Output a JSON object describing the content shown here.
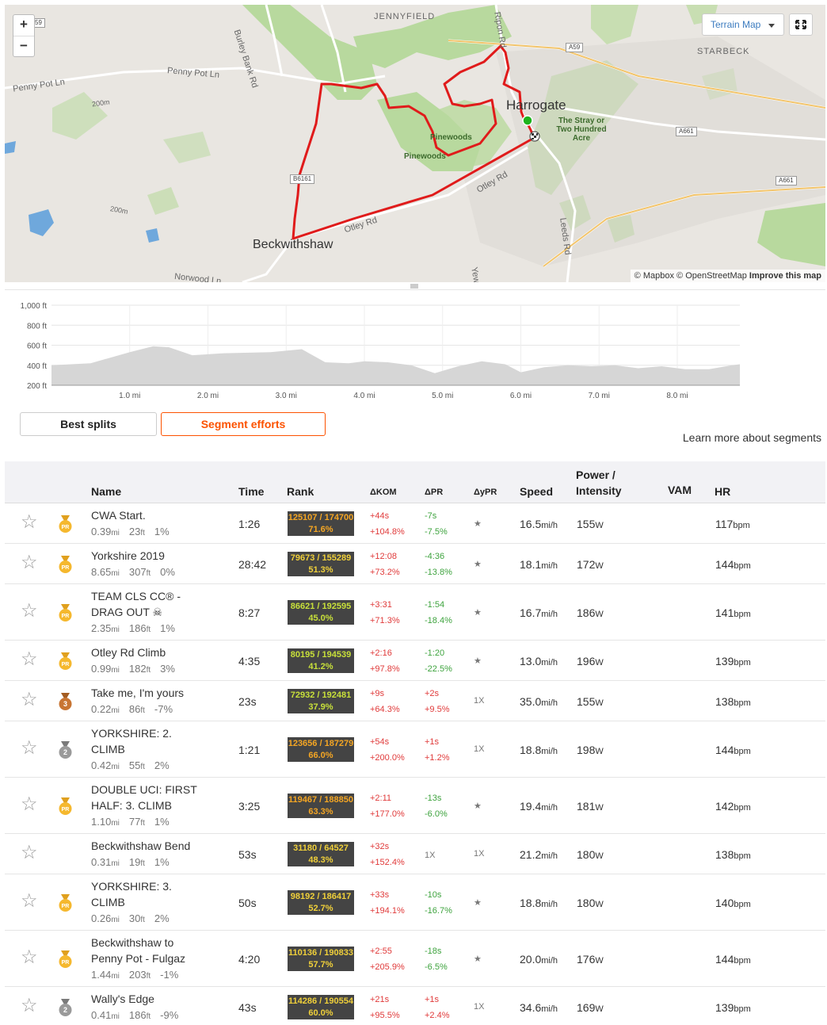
{
  "map": {
    "zoom_in": "+",
    "zoom_out": "−",
    "terrain_button": "Terrain Map",
    "attribution_mapbox": "© Mapbox",
    "attribution_osm": "© OpenStreetMap",
    "attribution_improve": "Improve this map",
    "labels": {
      "jennyfield": "JENNYFIELD",
      "starbeck": "STARBECK",
      "burley_bank_rd": "Burley Bank Rd",
      "ripon_rd": "Ripon Rd",
      "penny_pot_ln_1": "Penny Pot Ln",
      "penny_pot_ln_2": "Penny Pot Ln",
      "contour_200m_1": "200m",
      "contour_200m_2": "200m",
      "otley_rd_1": "Otley Rd",
      "otley_rd_2": "Otley Rd",
      "leeds_rd": "Leeds Rd",
      "norwood_ln": "Norwood Ln",
      "yew": "Yew",
      "harrogate": "Harrogate",
      "beckwithshaw": "Beckwithshaw",
      "pinewoods_1": "Pinewoods",
      "pinewoods_2": "Pinewoods",
      "stray": "The Stray or Two Hundred Acre",
      "a59_1": "59",
      "a59_2": "A59",
      "a661_1": "A661",
      "a661_2": "A661",
      "b6161": "B6161"
    }
  },
  "elevation": {
    "y_ticks": [
      "1,000 ft",
      "800 ft",
      "600 ft",
      "400 ft",
      "200 ft"
    ],
    "x_ticks": [
      "1.0 mi",
      "2.0 mi",
      "3.0 mi",
      "4.0 mi",
      "5.0 mi",
      "6.0 mi",
      "7.0 mi",
      "8.0 mi"
    ]
  },
  "chart_data": {
    "type": "area",
    "title": "",
    "xlabel": "",
    "ylabel": "",
    "x": [
      0,
      0.5,
      1.0,
      1.3,
      1.5,
      1.8,
      2.2,
      2.8,
      3.2,
      3.5,
      3.8,
      4.0,
      4.3,
      4.6,
      4.9,
      5.2,
      5.5,
      5.8,
      6.0,
      6.3,
      6.6,
      6.9,
      7.2,
      7.5,
      7.8,
      8.1,
      8.4,
      8.7,
      8.8
    ],
    "y": [
      400,
      420,
      530,
      590,
      580,
      500,
      520,
      530,
      560,
      430,
      420,
      440,
      430,
      400,
      320,
      390,
      440,
      410,
      330,
      380,
      400,
      390,
      400,
      370,
      390,
      360,
      360,
      400,
      410
    ],
    "xlim": [
      0,
      8.8
    ],
    "ylim": [
      200,
      1000
    ],
    "x_unit": "mi",
    "y_unit": "ft"
  },
  "tabs": {
    "best_splits": "Best splits",
    "segment_efforts": "Segment efforts"
  },
  "learn_more": "Learn more about segments",
  "table": {
    "headers": {
      "name": "Name",
      "time": "Time",
      "rank": "Rank",
      "dkom": "ΔKOM",
      "dpr": "ΔPR",
      "dypr": "ΔyPR",
      "speed": "Speed",
      "power_1": "Power /",
      "power_2": "Intensity",
      "vam": "VAM",
      "hr": "HR"
    },
    "units": {
      "dist": "mi",
      "elev": "ft",
      "speed": "mi/h",
      "power": "W",
      "hr": "bpm"
    },
    "medal_labels": {
      "pr": "PR",
      "bronze": "3",
      "silver": "2"
    },
    "rows": [
      {
        "name1": "CWA Start.",
        "name2": "",
        "dist": "0.39",
        "elev": "23",
        "grade": "1%",
        "time": "1:26",
        "rank": "125107 / 174700",
        "pct": "71.6%",
        "rank_color": "#f5a623",
        "dkom1": "+44s",
        "dkom2": "+104.8%",
        "dpr1": "-7s",
        "dpr2": "-7.5%",
        "dpr_color": "g",
        "dypr": "★",
        "speed": "16.5",
        "power": "155",
        "hr": "117",
        "medal": "pr",
        "star": "☆"
      },
      {
        "name1": "Yorkshire 2019",
        "name2": "",
        "dist": "8.65",
        "elev": "307",
        "grade": "0%",
        "time": "28:42",
        "rank": "79673 / 155289",
        "pct": "51.3%",
        "rank_color": "#f0d03a",
        "dkom1": "+12:08",
        "dkom2": "+73.2%",
        "dpr1": "-4:36",
        "dpr2": "-13.8%",
        "dpr_color": "g",
        "dypr": "★",
        "speed": "18.1",
        "power": "172",
        "hr": "144",
        "medal": "pr",
        "star": "☆"
      },
      {
        "name1": "TEAM CLS CC® -",
        "name2": "DRAG OUT ☠",
        "dist": "2.35",
        "elev": "186",
        "grade": "1%",
        "time": "8:27",
        "rank": "86621 / 192595",
        "pct": "45.0%",
        "rank_color": "#c8e03a",
        "dkom1": "+3:31",
        "dkom2": "+71.3%",
        "dpr1": "-1:54",
        "dpr2": "-18.4%",
        "dpr_color": "g",
        "dypr": "★",
        "speed": "16.7",
        "power": "186",
        "hr": "141",
        "medal": "pr",
        "star": "☆"
      },
      {
        "name1": "Otley Rd Climb",
        "name2": "",
        "dist": "0.99",
        "elev": "182",
        "grade": "3%",
        "time": "4:35",
        "rank": "80195 / 194539",
        "pct": "41.2%",
        "rank_color": "#c8e03a",
        "dkom1": "+2:16",
        "dkom2": "+97.8%",
        "dpr1": "-1:20",
        "dpr2": "-22.5%",
        "dpr_color": "g",
        "dypr": "★",
        "speed": "13.0",
        "power": "196",
        "hr": "139",
        "medal": "pr",
        "star": "☆"
      },
      {
        "name1": "Take me, I'm yours",
        "name2": "",
        "dist": "0.22",
        "elev": "86",
        "grade": "-7%",
        "time": "23s",
        "rank": "72932 / 192481",
        "pct": "37.9%",
        "rank_color": "#c8e03a",
        "dkom1": "+9s",
        "dkom2": "+64.3%",
        "dpr1": "+2s",
        "dpr2": "+9.5%",
        "dpr_color": "r",
        "dypr": "1X",
        "speed": "35.0",
        "power": "155",
        "hr": "138",
        "medal": "bronze",
        "star": "☆"
      },
      {
        "name1": "YORKSHIRE: 2.",
        "name2": "CLIMB",
        "dist": "0.42",
        "elev": "55",
        "grade": "2%",
        "time": "1:21",
        "rank": "123656 / 187279",
        "pct": "66.0%",
        "rank_color": "#f5a623",
        "dkom1": "+54s",
        "dkom2": "+200.0%",
        "dpr1": "+1s",
        "dpr2": "+1.2%",
        "dpr_color": "r",
        "dypr": "1X",
        "speed": "18.8",
        "power": "198",
        "hr": "144",
        "medal": "silver",
        "star": "☆"
      },
      {
        "name1": "DOUBLE UCI: FIRST",
        "name2": "HALF: 3. CLIMB",
        "dist": "1.10",
        "elev": "77",
        "grade": "1%",
        "time": "3:25",
        "rank": "119467 / 188850",
        "pct": "63.3%",
        "rank_color": "#f5a623",
        "dkom1": "+2:11",
        "dkom2": "+177.0%",
        "dpr1": "-13s",
        "dpr2": "-6.0%",
        "dpr_color": "g",
        "dypr": "★",
        "speed": "19.4",
        "power": "181",
        "hr": "142",
        "medal": "pr",
        "star": "☆"
      },
      {
        "name1": "Beckwithshaw Bend",
        "name2": "",
        "dist": "0.31",
        "elev": "19",
        "grade": "1%",
        "time": "53s",
        "rank": "31180 / 64527",
        "pct": "48.3%",
        "rank_color": "#f0d03a",
        "dkom1": "+32s",
        "dkom2": "+152.4%",
        "dpr1": "1X",
        "dpr2": "",
        "dpr_color": "n",
        "dypr": "1X",
        "speed": "21.2",
        "power": "180",
        "hr": "138",
        "medal": "",
        "star": "☆"
      },
      {
        "name1": "YORKSHIRE: 3.",
        "name2": "CLIMB",
        "dist": "0.26",
        "elev": "30",
        "grade": "2%",
        "time": "50s",
        "rank": "98192 / 186417",
        "pct": "52.7%",
        "rank_color": "#f0d03a",
        "dkom1": "+33s",
        "dkom2": "+194.1%",
        "dpr1": "-10s",
        "dpr2": "-16.7%",
        "dpr_color": "g",
        "dypr": "★",
        "speed": "18.8",
        "power": "180",
        "hr": "140",
        "medal": "pr",
        "star": "☆"
      },
      {
        "name1": "Beckwithshaw to",
        "name2": "Penny Pot - Fulgaz",
        "dist": "1.44",
        "elev": "203",
        "grade": "-1%",
        "time": "4:20",
        "rank": "110136 / 190833",
        "pct": "57.7%",
        "rank_color": "#f0d03a",
        "dkom1": "+2:55",
        "dkom2": "+205.9%",
        "dpr1": "-18s",
        "dpr2": "-6.5%",
        "dpr_color": "g",
        "dypr": "★",
        "speed": "20.0",
        "power": "176",
        "hr": "144",
        "medal": "pr",
        "star": "☆"
      },
      {
        "name1": "Wally's Edge",
        "name2": "",
        "dist": "0.41",
        "elev": "186",
        "grade": "-9%",
        "time": "43s",
        "rank": "114286 / 190554",
        "pct": "60.0%",
        "rank_color": "#f0d03a",
        "dkom1": "+21s",
        "dkom2": "+95.5%",
        "dpr1": "+1s",
        "dpr2": "+2.4%",
        "dpr_color": "r",
        "dypr": "1X",
        "speed": "34.6",
        "power": "169",
        "hr": "139",
        "medal": "silver",
        "star": "☆"
      }
    ]
  },
  "colors": {
    "accent": "#fc5200",
    "route": "#e01b1b",
    "start": "#1db31d",
    "pr_gold": "#f5b82e",
    "bronze": "#c87533",
    "silver": "#9a9a9a"
  }
}
